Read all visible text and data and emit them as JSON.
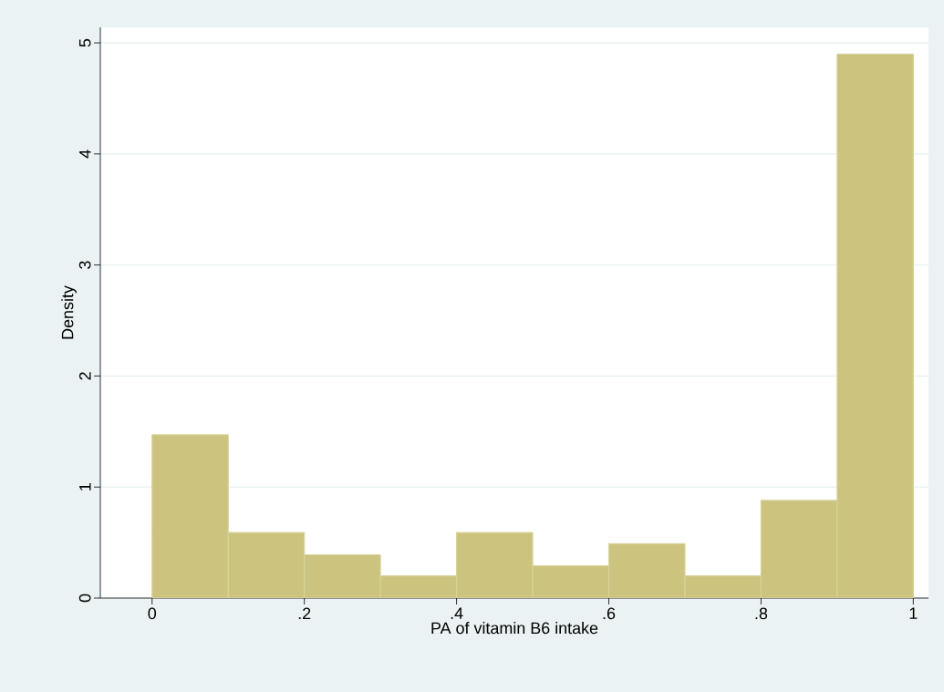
{
  "chart_data": {
    "type": "histogram",
    "xlabel": "PA of vitamin B6 intake",
    "ylabel": "Density",
    "bins": [
      0,
      0.1,
      0.2,
      0.3,
      0.4,
      0.5,
      0.6,
      0.7,
      0.8,
      0.9,
      1
    ],
    "values": [
      1.47,
      0.59,
      0.39,
      0.2,
      0.59,
      0.29,
      0.49,
      0.2,
      0.88,
      4.9
    ],
    "color": "#cbc37e",
    "xlim": [
      -0.068,
      1.02
    ],
    "ylim": [
      0,
      5.14
    ],
    "xticks": [
      0,
      {
        "value": 0.2,
        "label": ".2"
      },
      {
        "value": 0.4,
        "label": ".4"
      },
      {
        "value": 0.6,
        "label": ".6"
      },
      {
        "value": 0.8,
        "label": ".8"
      },
      1
    ],
    "yticks": [
      0,
      1,
      2,
      3,
      4,
      5
    ],
    "grid": "y"
  }
}
